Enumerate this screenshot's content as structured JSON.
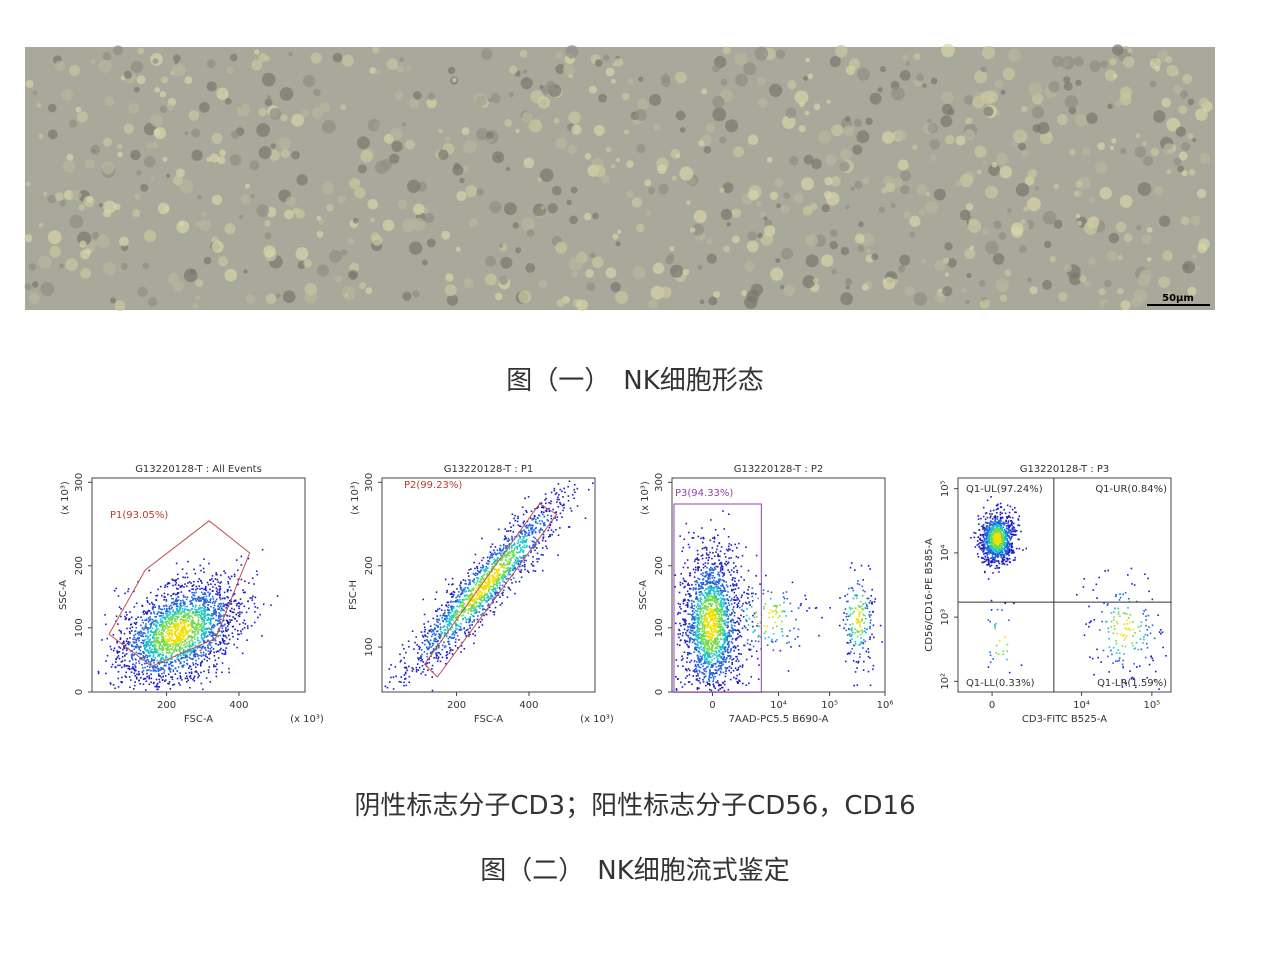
{
  "figure1": {
    "scale_bar": "50μm",
    "caption": "图（一）　NK细胞形态"
  },
  "figure2": {
    "plots": [
      {
        "title": "G13220128-T : All Events",
        "x_label": "FSC-A",
        "y_label": "SSC-A",
        "x_unit": "(x 10³)",
        "y_unit": "(x 10³)",
        "x_ticks": [
          "200",
          "400"
        ],
        "y_ticks": [
          "0",
          "100",
          "200",
          "300"
        ],
        "gates": [
          "P1(93.05%)"
        ]
      },
      {
        "title": "G13220128-T : P1",
        "x_label": "FSC-A",
        "y_label": "FSC-H",
        "x_unit": "(x 10³)",
        "y_unit": "(x 10³)",
        "x_ticks": [
          "200",
          "400"
        ],
        "y_ticks": [
          "100",
          "200",
          "300"
        ],
        "gates": [
          "P2(99.23%)"
        ]
      },
      {
        "title": "G13220128-T : P2",
        "x_label": "7AAD-PC5.5 B690-A",
        "y_label": "SSC-A",
        "y_unit": "(x 10³)",
        "x_ticks": [
          "0",
          "10⁴",
          "10⁵",
          "10⁶"
        ],
        "y_ticks": [
          "0",
          "100",
          "200",
          "300"
        ],
        "gates": [
          "P3(94.33%)"
        ]
      },
      {
        "title": "G13220128-T : P3",
        "x_label": "CD3-FITC B525-A",
        "y_label": "CD56/CD16-PE B585-A",
        "x_ticks": [
          "0",
          "10⁴",
          "10⁵"
        ],
        "y_ticks": [
          "10⁵",
          "10⁴",
          "10³",
          "10²"
        ],
        "gates": [
          "Q1-UL(97.24%)",
          "Q1-UR(0.84%)",
          "Q1-LL(0.33%)",
          "Q1-LR(1.59%)"
        ]
      }
    ],
    "note": "阴性标志分子CD3；阳性标志分子CD56，CD16",
    "caption": "图（二）　NK细胞流式鉴定"
  }
}
